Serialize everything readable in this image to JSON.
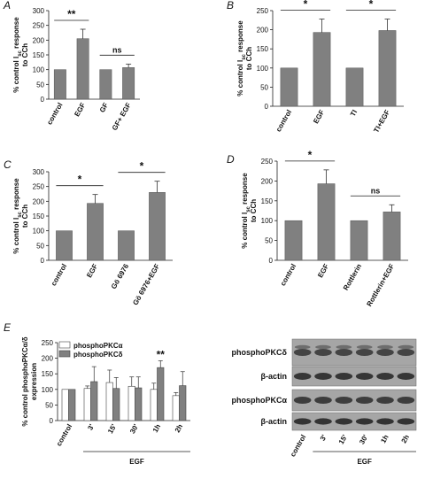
{
  "chart_data": [
    {
      "panel": "A",
      "type": "bar",
      "ylabel_lines": [
        "% control I<sub>sc</sub> response",
        "to CCh"
      ],
      "ylim": [
        0,
        300
      ],
      "yticks": [
        0,
        50,
        100,
        150,
        200,
        250,
        300
      ],
      "categories": [
        "control",
        "EGF",
        "GF",
        "GF+ EGF"
      ],
      "values": [
        100,
        205,
        100,
        107
      ],
      "errors": [
        0,
        32,
        0,
        12
      ],
      "brackets": [
        {
          "from": 0,
          "to": 1,
          "label": "**"
        },
        {
          "from": 2,
          "to": 3,
          "label": "ns"
        }
      ]
    },
    {
      "panel": "B",
      "type": "bar",
      "ylabel_lines": [
        "% control I<sub>sc</sub> response",
        "to CCh"
      ],
      "ylim": [
        0,
        250
      ],
      "yticks": [
        0,
        50,
        100,
        150,
        200,
        250
      ],
      "categories": [
        "control",
        "EGF",
        "TI",
        "TI+EGF"
      ],
      "values": [
        100,
        193,
        100,
        198
      ],
      "errors": [
        0,
        35,
        0,
        30
      ],
      "brackets": [
        {
          "from": 0,
          "to": 1,
          "label": "*"
        },
        {
          "from": 2,
          "to": 3,
          "label": "*"
        }
      ]
    },
    {
      "panel": "C",
      "type": "bar",
      "ylabel_lines": [
        "% control I<sub>sc</sub> response",
        "to CCh"
      ],
      "ylim": [
        0,
        300
      ],
      "yticks": [
        0,
        50,
        100,
        150,
        200,
        250,
        300
      ],
      "categories": [
        "control",
        "EGF",
        "Gö 6976",
        "Gö 6976+EGF"
      ],
      "values": [
        100,
        193,
        100,
        230
      ],
      "errors": [
        0,
        30,
        0,
        38
      ],
      "brackets": [
        {
          "from": 0,
          "to": 1,
          "label": "*"
        },
        {
          "from": 2,
          "to": 3,
          "label": "*"
        }
      ]
    },
    {
      "panel": "D",
      "type": "bar",
      "ylabel_lines": [
        "% control I<sub>sc</sub> response",
        "to CCh"
      ],
      "ylim": [
        0,
        250
      ],
      "yticks": [
        0,
        50,
        100,
        150,
        200,
        250
      ],
      "categories": [
        "control",
        "EGF",
        "Rottlerin",
        "Rottlerin+EGF"
      ],
      "values": [
        100,
        193,
        100,
        122
      ],
      "errors": [
        0,
        35,
        0,
        18
      ],
      "brackets": [
        {
          "from": 0,
          "to": 1,
          "label": "*"
        },
        {
          "from": 2,
          "to": 3,
          "label": "ns"
        }
      ]
    },
    {
      "panel": "E",
      "type": "bar",
      "ylabel_lines": [
        "% control phosphoPKCα/δ",
        "expression"
      ],
      "ylim": [
        0,
        250
      ],
      "yticks": [
        0,
        50,
        100,
        150,
        200,
        250
      ],
      "categories": [
        "control",
        "3'",
        "15'",
        "30'",
        "1h",
        "2h"
      ],
      "series": [
        {
          "name": "phosphoPKCα",
          "values": [
            100,
            103,
            122,
            110,
            100,
            80
          ],
          "errors": [
            0,
            8,
            40,
            30,
            20,
            10
          ],
          "fill": "#ffffff"
        },
        {
          "name": "phosphoPKCδ",
          "values": [
            100,
            125,
            103,
            105,
            170,
            112
          ],
          "errors": [
            0,
            48,
            35,
            35,
            22,
            45
          ],
          "fill": "#808080"
        }
      ],
      "annotations": [
        {
          "category": 4,
          "series": 1,
          "label": "**"
        }
      ],
      "group_label": "EGF"
    }
  ],
  "blot": {
    "rows": [
      "phosphoPKCδ",
      "β-actin",
      "phosphoPKCα",
      "β-actin"
    ],
    "lanes": [
      "control",
      "3'",
      "15'",
      "30'",
      "1h",
      "2h"
    ],
    "group_label": "EGF"
  },
  "colors": {
    "bar": "#808080",
    "bar_edge": "#555555",
    "text": "#111111"
  }
}
